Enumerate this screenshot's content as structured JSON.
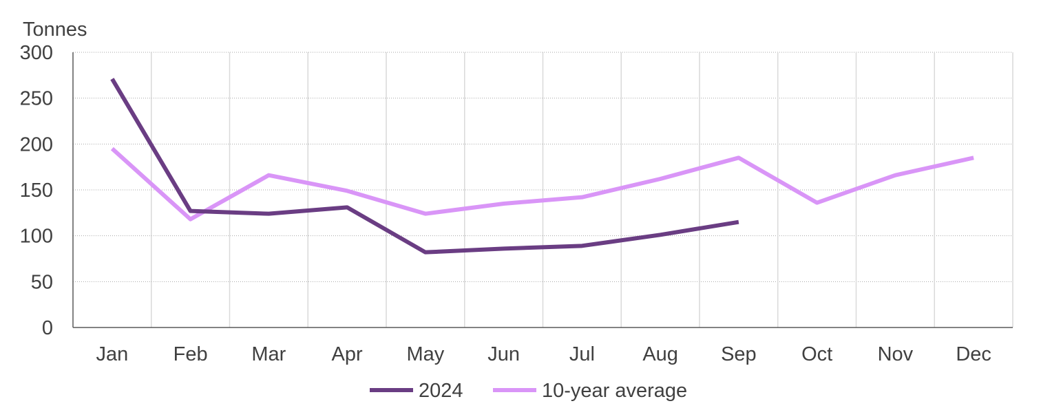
{
  "chart_data": {
    "type": "line",
    "title": "",
    "ylabel": "Tonnes",
    "xlabel": "",
    "categories": [
      "Jan",
      "Feb",
      "Mar",
      "Apr",
      "May",
      "Jun",
      "Jul",
      "Aug",
      "Sep",
      "Oct",
      "Nov",
      "Dec"
    ],
    "ylim": [
      0,
      300
    ],
    "yticks": [
      0,
      50,
      100,
      150,
      200,
      250,
      300
    ],
    "grid": true,
    "legend_position": "bottom",
    "series": [
      {
        "name": "2024",
        "color": "#6a3d83",
        "values": [
          271,
          127,
          124,
          131,
          82,
          86,
          89,
          101,
          115,
          null,
          null,
          null
        ]
      },
      {
        "name": "10-year average",
        "color": "#d995f7",
        "values": [
          195,
          118,
          166,
          149,
          124,
          135,
          142,
          162,
          185,
          136,
          166,
          185
        ]
      }
    ]
  }
}
